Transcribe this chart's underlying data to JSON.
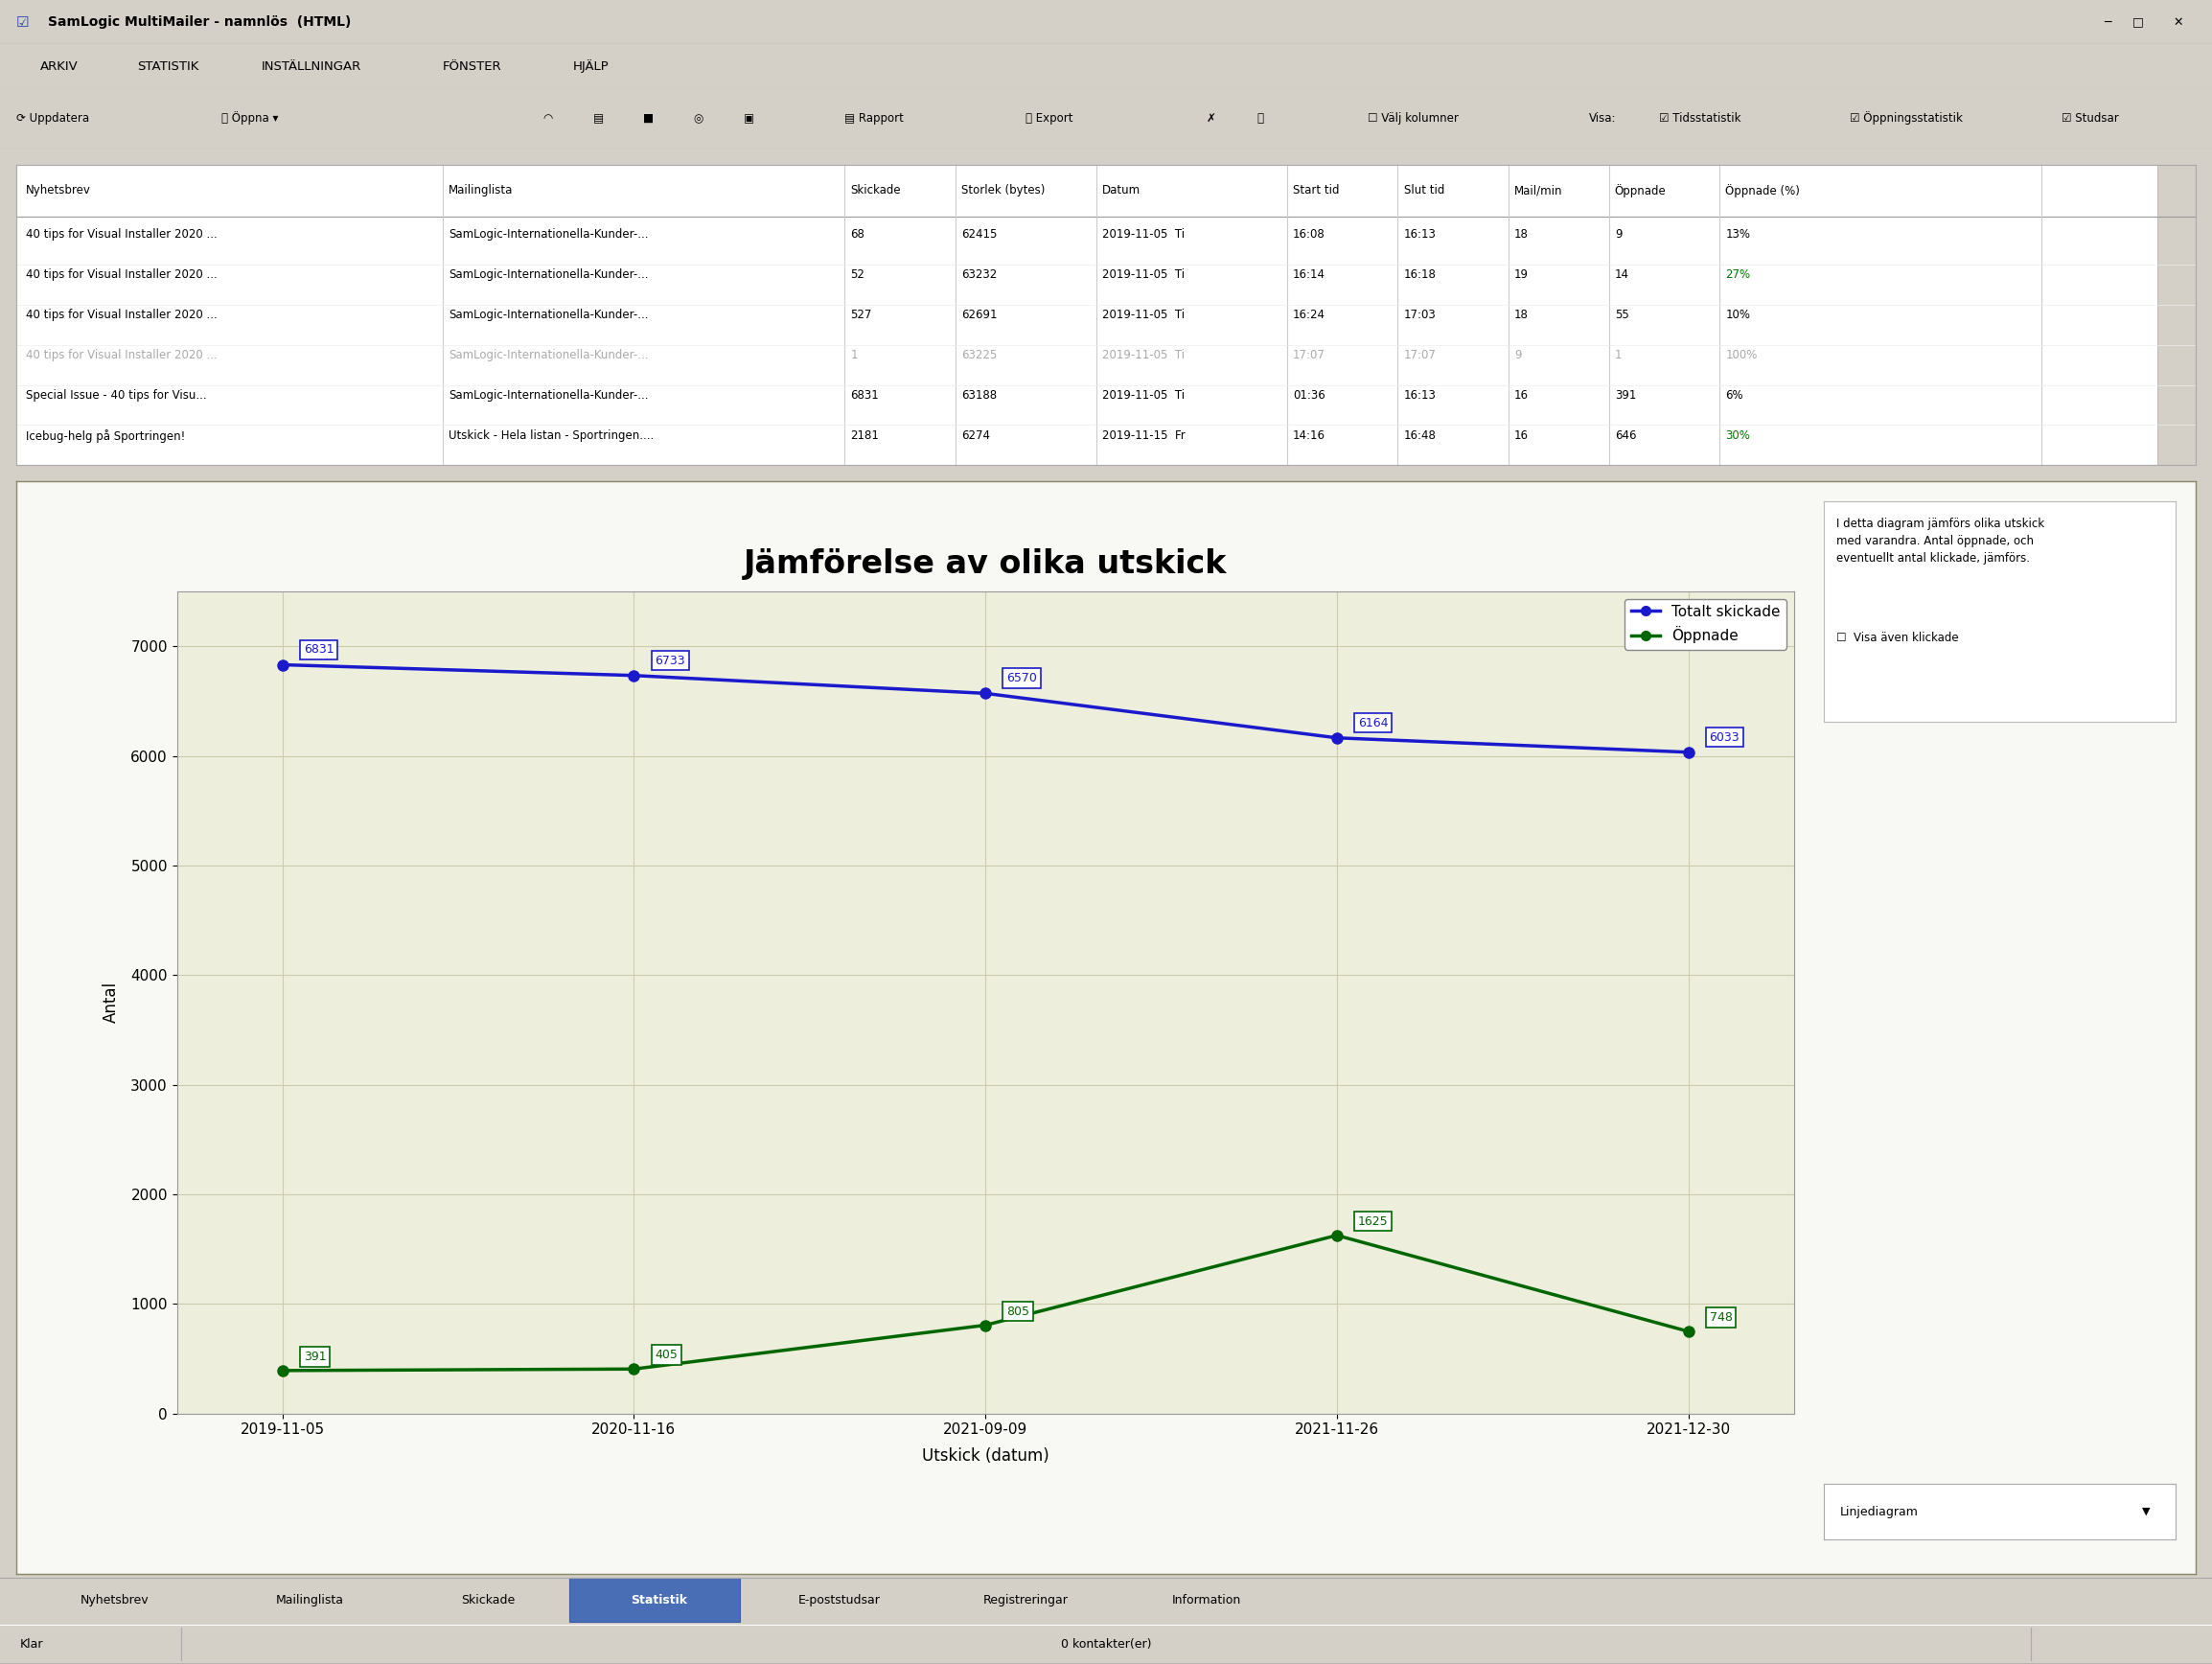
{
  "title": "Jämförelse av olika utskick",
  "xlabel": "Utskick (datum)",
  "ylabel": "Antal",
  "x_labels": [
    "2019-11-05",
    "2020-11-16",
    "2021-09-09",
    "2021-11-26",
    "2021-12-30"
  ],
  "total_sent": [
    6831,
    6733,
    6570,
    6164,
    6033
  ],
  "opened": [
    391,
    405,
    805,
    1625,
    748
  ],
  "ylim": [
    0,
    7500
  ],
  "yticks": [
    0,
    1000,
    2000,
    3000,
    4000,
    5000,
    6000,
    7000
  ],
  "blue_color": "#1a1acc",
  "green_color": "#006600",
  "legend_total": "Totalt skickade",
  "legend_opened": "Öppnade",
  "bg_plot_area": "#eeeedd",
  "grid_color": "#ccccaa",
  "window_bg": "#d4d0c8",
  "title_bar_bg": "#d4d0c8",
  "title_fontsize": 24,
  "axis_label_fontsize": 12,
  "tick_fontsize": 11,
  "legend_fontsize": 11,
  "annotation_fontsize": 9,
  "menu_items": [
    "ARKIV",
    "STATISTIK",
    "INSTÄLLNINGAR",
    "FÖNSTER",
    "HJÄLP"
  ],
  "toolbar_text": "⟳ Uppdatera   📂 Öppna ▾               📋 Rapport   ⌖ Export   ✗   ⓘ       ☐ Välj kolumner      Visa:  ☑ Tidsstatistik   ☑ Öppningsstatistik   ☑ Studsar",
  "table_headers": [
    "Nyhetsbrev",
    "Mailinglista",
    "Skickade",
    "Storlek (bytes)",
    "Datum",
    "Start tid",
    "Slut tid",
    "Mail/min",
    "Öppnade",
    "Öppnade (%)"
  ],
  "col_widths_pct": [
    0.2,
    0.2,
    0.06,
    0.09,
    0.13,
    0.06,
    0.06,
    0.06,
    0.07,
    0.07
  ],
  "table_rows": [
    [
      "40 tips for Visual Installer 2020 ...",
      "SamLogic-Internationella-Kunder-...",
      "68",
      "62415",
      "2019-11-05  Ti",
      "16:08",
      "16:13",
      "18",
      "9",
      "13%",
      "normal"
    ],
    [
      "40 tips for Visual Installer 2020 ...",
      "SamLogic-Internationella-Kunder-...",
      "52",
      "63232",
      "2019-11-05  Ti",
      "16:14",
      "16:18",
      "19",
      "14",
      "27%",
      "normal"
    ],
    [
      "40 tips for Visual Installer 2020 ...",
      "SamLogic-Internationella-Kunder-...",
      "527",
      "62691",
      "2019-11-05  Ti",
      "16:24",
      "17:03",
      "18",
      "55",
      "10%",
      "normal"
    ],
    [
      "40 tips for Visual Installer 2020 ...",
      "SamLogic-Internationella-Kunder-...",
      "1",
      "63225",
      "2019-11-05  Ti",
      "17:07",
      "17:07",
      "9",
      "1",
      "100%",
      "gray"
    ],
    [
      "Special Issue - 40 tips for Visu...",
      "SamLogic-Internationella-Kunder-...",
      "6831",
      "63188",
      "2019-11-05  Ti",
      "01:36",
      "16:13",
      "16",
      "391",
      "6%",
      "normal"
    ],
    [
      "Icebug-helg på Sportringen!",
      "Utskick - Hela listan - Sportringen....",
      "2181",
      "6274",
      "2019-11-15  Fr",
      "14:16",
      "16:48",
      "16",
      "646",
      "30%",
      "normal"
    ]
  ],
  "green_pct_values": [
    "27%",
    "30%"
  ],
  "tab_items": [
    "Nyhetsbrev",
    "Mailinglista",
    "Skickade",
    "Statistik",
    "E-poststudsar",
    "Registreringar",
    "Information"
  ],
  "active_tab_index": 3,
  "info_text": "I detta diagram jämförs olika utskick\nmed varandra. Antal öppnade, och\neventuellt antal klickade, jämförs.",
  "dropdown_label": "Linjediagram",
  "status_left": "Klar",
  "status_center": "0 kontakter(er)"
}
